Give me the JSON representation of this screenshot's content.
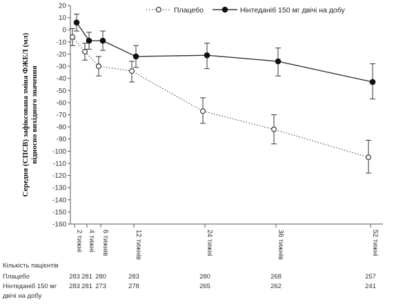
{
  "chart_data": {
    "type": "line",
    "ylabel": "Середня (СПСВ) зафіксована зміна ФЖЕЛ (мл) відносно вихідного значення",
    "ylabel_lines": [
      "Середня (СПСВ) зафіксована зміна ФЖЕЛ (мл)",
      "відносно вихідного значення"
    ],
    "ylim": [
      -160,
      20
    ],
    "yticks": [
      20,
      10,
      0,
      -10,
      -20,
      -30,
      -40,
      -50,
      -60,
      -70,
      -80,
      -90,
      -100,
      -110,
      -120,
      -130,
      -140,
      -150,
      -160
    ],
    "x": [
      2,
      4,
      6,
      12,
      24,
      36,
      52
    ],
    "xtick_labels": [
      "2 тижні",
      "4 тижні",
      "6 тижнів",
      "12 тижнів",
      "24 тижні",
      "36 тижнів",
      "52 тижні"
    ],
    "legend_position": "top-right",
    "series": [
      {
        "name": "Плацебо",
        "style": "dotted-open-circle",
        "color": "#333333",
        "values": [
          -6,
          -18,
          -30,
          -34,
          -67,
          -82,
          -105
        ],
        "err_low": [
          -13,
          -25,
          -38,
          -43,
          -77,
          -94,
          -118
        ],
        "err_high": [
          1,
          -11,
          -22,
          -26,
          -56,
          -70,
          -91
        ]
      },
      {
        "name": "Нінтеданіб 150 мг двічі на добу",
        "style": "solid-filled-circle",
        "color": "#333333",
        "values": [
          6,
          -9,
          -9,
          -22,
          -21,
          -26,
          -43
        ],
        "err_low": [
          -1,
          -16,
          -17,
          -31,
          -32,
          -38,
          -57
        ],
        "err_high": [
          13,
          -2,
          -1,
          -13,
          -11,
          -15,
          -28
        ]
      }
    ],
    "patients_table": {
      "header": "Кількість пацієнтів",
      "rows": [
        {
          "label": "Плацебо",
          "label_lines": [
            "Плацебо"
          ],
          "values": [
            "283",
            "281",
            "280",
            "283",
            "280",
            "268",
            "257"
          ]
        },
        {
          "label": "Нінтеданіб 150 мг двічі на добу",
          "label_lines": [
            "Нінтеданіб 150 мг",
            "двічі на добу"
          ],
          "values": [
            "283",
            "281",
            "273",
            "278",
            "265",
            "262",
            "241"
          ]
        }
      ]
    }
  }
}
